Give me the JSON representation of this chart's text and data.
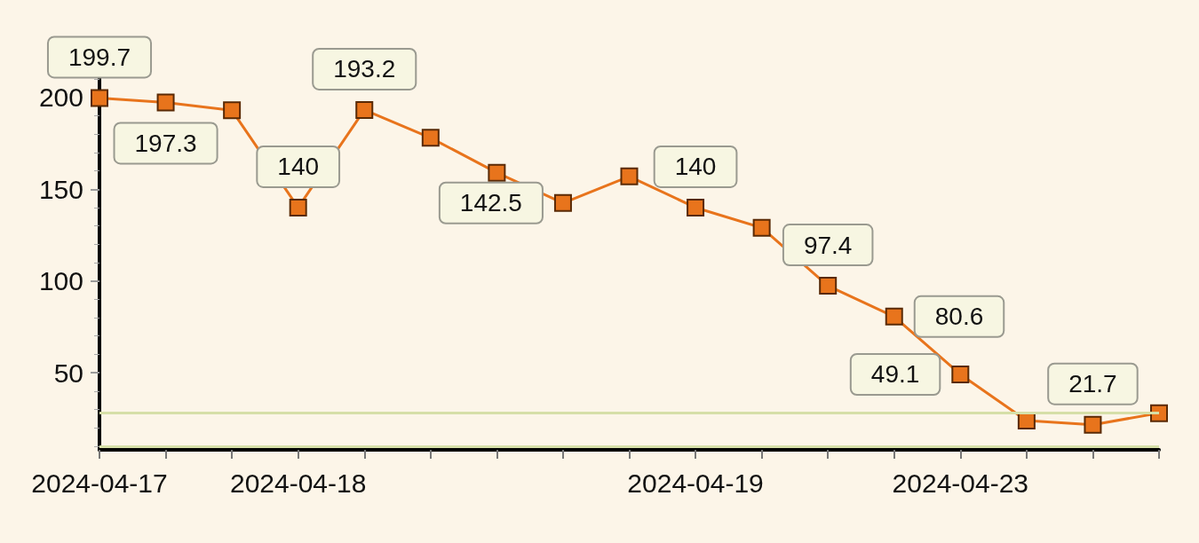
{
  "chart_data": {
    "type": "line",
    "categories": [
      "2024-04-17",
      null,
      null,
      "2024-04-18",
      null,
      null,
      null,
      null,
      null,
      "2024-04-19",
      null,
      null,
      null,
      "2024-04-23",
      null,
      null,
      null
    ],
    "series": [
      {
        "color": "#e8741c",
        "values": [
          199.7,
          197.3,
          193,
          140,
          193.2,
          178,
          159,
          142.5,
          157,
          140,
          129,
          97.4,
          80.6,
          49.1,
          24,
          21.7,
          28
        ],
        "value_labels": [
          "199.7",
          "197.3",
          null,
          "140",
          "193.2",
          null,
          null,
          "142.5",
          null,
          "140",
          null,
          "97.4",
          "80.6",
          "49.1",
          null,
          "21.7",
          null
        ]
      }
    ],
    "ylim": [
      8,
      212
    ],
    "yticks": [
      50,
      100,
      150,
      200
    ],
    "ref_lines": [
      {
        "axis": "y",
        "value": 28,
        "color": "#d6dfa8"
      },
      {
        "axis": "y",
        "value": 10,
        "color": "#d6dfa8"
      }
    ],
    "marker": "square",
    "line_style": "solid"
  }
}
